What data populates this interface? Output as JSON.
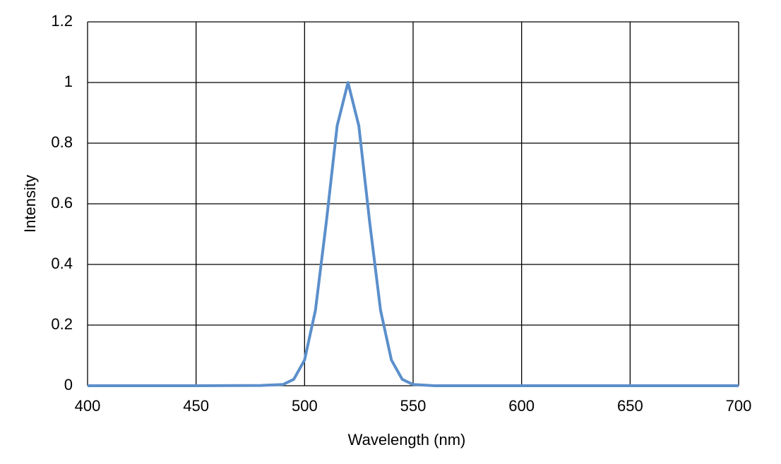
{
  "chart_data": {
    "type": "line",
    "x_label": "Wavelength (nm)",
    "y_label": "Intensity",
    "x": [
      400,
      450,
      480,
      490,
      495,
      500,
      505,
      510,
      515,
      520,
      525,
      530,
      535,
      540,
      545,
      550,
      560,
      600,
      650,
      700
    ],
    "series": [
      {
        "color": "#5b8fcb",
        "values": [
          0,
          0,
          0.001,
          0.004,
          0.021,
          0.085,
          0.249,
          0.539,
          0.857,
          1,
          0.857,
          0.539,
          0.249,
          0.085,
          0.021,
          0.004,
          0,
          0,
          0,
          0
        ]
      }
    ],
    "xlim": [
      400,
      700
    ],
    "xticks": [
      400,
      450,
      500,
      550,
      600,
      650,
      700
    ],
    "ylim": [
      0,
      1.2
    ],
    "yticks": [
      0,
      0.2,
      0.4,
      0.6,
      0.8,
      1,
      1.2
    ],
    "grid": true
  }
}
